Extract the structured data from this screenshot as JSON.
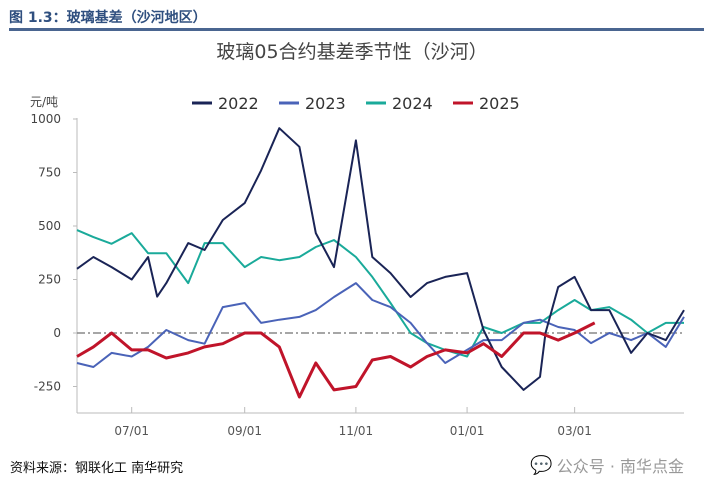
{
  "figure_title": "图 1.3：玻璃基差（沙河地区）",
  "source": "资料来源：钢联化工 南华研究",
  "watermark": "公众号 · 南华点金",
  "chart_data": {
    "type": "line",
    "title": "玻璃05合约基差季节性（沙河）",
    "ylabel": "元/吨",
    "xlabel": "",
    "ylim": [
      -375,
      1000
    ],
    "yticks": [
      -250,
      0,
      250,
      500,
      750,
      1000
    ],
    "xlim": [
      "06/01",
      "04/30"
    ],
    "xticks": [
      "07/01",
      "09/01",
      "11/01",
      "01/01",
      "03/01"
    ],
    "zero_line": "dash-dot gray",
    "grid": false,
    "legend": "top",
    "series": [
      {
        "name": "2022",
        "color": "#1a2456",
        "x": [
          "06/01",
          "06/10",
          "06/20",
          "07/01",
          "07/10",
          "07/15",
          "07/20",
          "08/01",
          "08/10",
          "08/20",
          "09/01",
          "09/10",
          "09/20",
          "10/01",
          "10/10",
          "10/20",
          "11/01",
          "11/10",
          "11/20",
          "12/01",
          "12/10",
          "12/20",
          "01/01",
          "01/10",
          "01/20",
          "02/01",
          "02/10",
          "02/13",
          "02/20",
          "03/01",
          "03/10",
          "03/20",
          "04/01",
          "04/10",
          "04/20",
          "04/30"
        ],
        "values": [
          300,
          355,
          308,
          250,
          355,
          170,
          233,
          420,
          388,
          528,
          607,
          760,
          957,
          870,
          467,
          308,
          900,
          355,
          280,
          168,
          233,
          262,
          280,
          14,
          -159,
          -266,
          -205,
          0,
          215,
          262,
          107,
          107,
          -93,
          0,
          -33,
          107
        ]
      },
      {
        "name": "2023",
        "color": "#4a63b8",
        "x": [
          "06/01",
          "06/10",
          "06/20",
          "07/01",
          "07/10",
          "07/20",
          "08/01",
          "08/10",
          "08/20",
          "09/01",
          "09/10",
          "09/20",
          "10/01",
          "10/10",
          "10/20",
          "11/01",
          "11/10",
          "11/20",
          "12/01",
          "12/10",
          "12/20",
          "01/01",
          "01/10",
          "01/20",
          "02/01",
          "02/10",
          "02/20",
          "03/01",
          "03/10",
          "03/20",
          "04/01",
          "04/10",
          "04/20",
          "04/30"
        ],
        "values": [
          -140,
          -159,
          -93,
          -110,
          -65,
          14,
          -33,
          -50,
          121,
          140,
          47,
          62,
          75,
          107,
          168,
          233,
          154,
          121,
          47,
          -47,
          -140,
          -79,
          -33,
          -33,
          47,
          62,
          28,
          14,
          -47,
          0,
          -33,
          0,
          -65,
          75
        ]
      },
      {
        "name": "2024",
        "color": "#1aaa9a",
        "x": [
          "06/01",
          "06/10",
          "06/20",
          "07/01",
          "07/10",
          "07/20",
          "08/01",
          "08/10",
          "08/20",
          "09/01",
          "09/10",
          "09/20",
          "10/01",
          "10/10",
          "10/20",
          "11/01",
          "11/10",
          "11/20",
          "12/01",
          "12/10",
          "12/20",
          "01/01",
          "01/10",
          "01/20",
          "02/01",
          "02/10",
          "02/20",
          "03/01",
          "03/10",
          "03/20",
          "04/01",
          "04/10",
          "04/20",
          "04/30"
        ],
        "values": [
          481,
          448,
          417,
          467,
          373,
          373,
          233,
          420,
          420,
          308,
          355,
          340,
          355,
          402,
          434,
          355,
          262,
          140,
          0,
          -47,
          -79,
          -110,
          28,
          0,
          47,
          47,
          107,
          154,
          107,
          121,
          62,
          0,
          47,
          47
        ]
      },
      {
        "name": "2025",
        "color": "#c0142a",
        "x": [
          "06/01",
          "06/10",
          "06/20",
          "07/01",
          "07/10",
          "07/20",
          "08/01",
          "08/10",
          "08/20",
          "09/01",
          "09/10",
          "09/20",
          "10/01",
          "10/10",
          "10/20",
          "11/01",
          "11/10",
          "11/20",
          "12/01",
          "12/10",
          "12/20",
          "01/01",
          "01/10",
          "01/20",
          "02/01",
          "02/10",
          "02/20",
          "03/01",
          "03/12"
        ],
        "values": [
          -110,
          -65,
          0,
          -79,
          -79,
          -117,
          -93,
          -65,
          -50,
          0,
          0,
          -65,
          -299,
          -140,
          -266,
          -250,
          -126,
          -110,
          -159,
          -110,
          -79,
          -93,
          -50,
          -110,
          0,
          0,
          -33,
          0,
          47
        ]
      }
    ]
  }
}
